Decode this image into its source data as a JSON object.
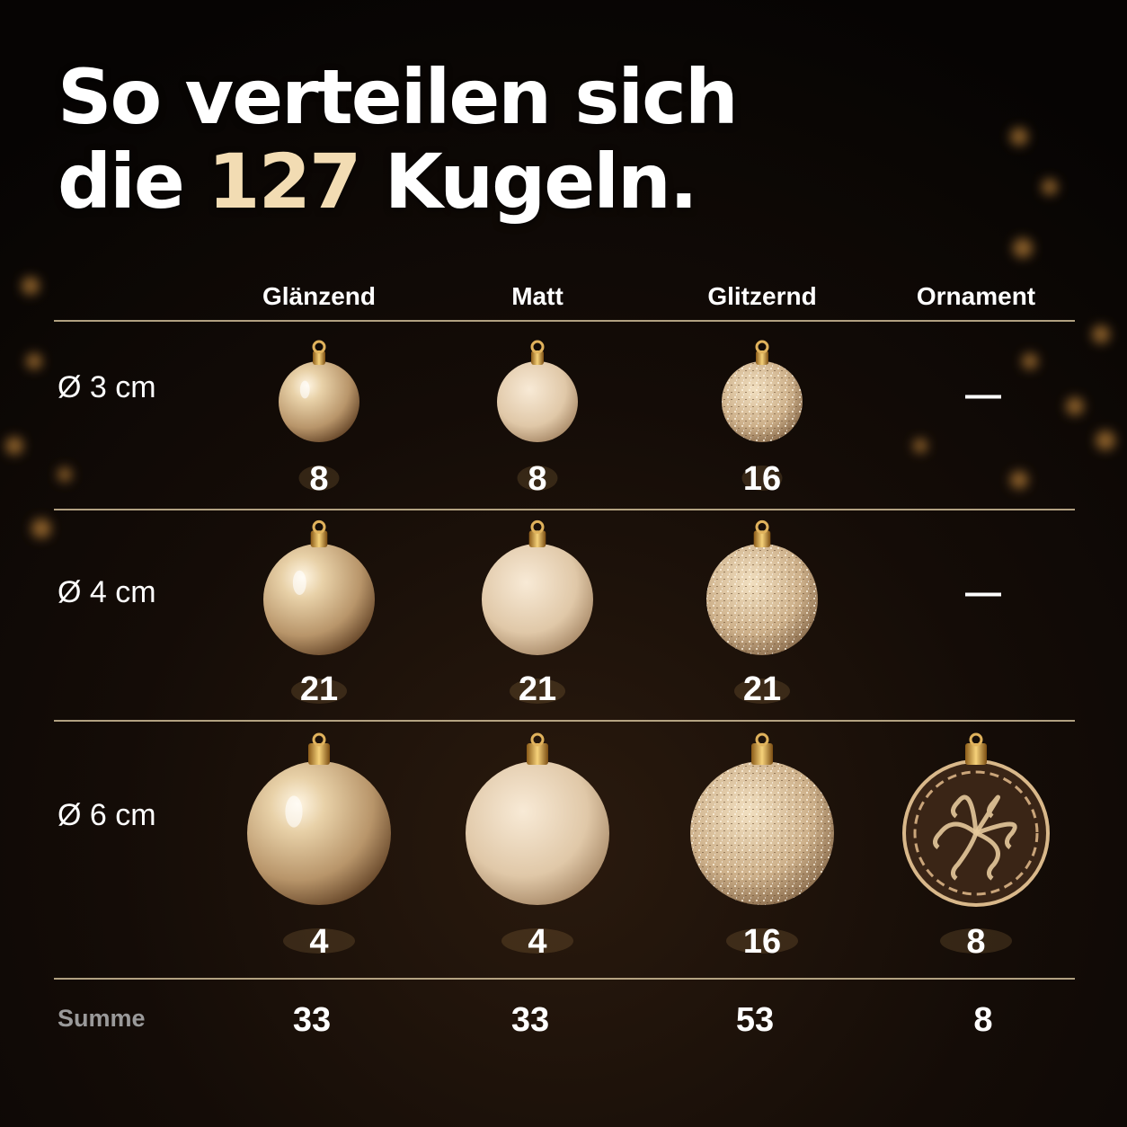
{
  "header": {
    "title_line1": "So verteilen sich",
    "title_line2_start": "die",
    "title_highlight": "127",
    "title_line2_end": "Kugeln."
  },
  "table": {
    "columns": [
      "Glänzend",
      "Matt",
      "Glitzernd",
      "Ornament"
    ],
    "rows": [
      {
        "label": "Ø 3 cm",
        "cells": [
          8,
          8,
          16,
          "—"
        ]
      },
      {
        "label": "Ø 4 cm",
        "cells": [
          21,
          21,
          21,
          "—"
        ]
      },
      {
        "label": "Ø 6 cm",
        "cells": [
          4,
          4,
          16,
          8
        ]
      }
    ],
    "total": {
      "label": "Summe",
      "cells": [
        33,
        33,
        53,
        8
      ]
    }
  }
}
